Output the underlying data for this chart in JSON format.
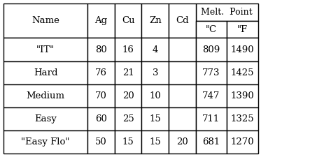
{
  "col_headers": [
    "Name",
    "Ag",
    "Cu",
    "Zn",
    "Cd",
    "\"C",
    "\"F"
  ],
  "melt_point_header": "Melt.  Point",
  "rows": [
    [
      "\"IT\"",
      "80",
      "16",
      "4",
      "",
      "809",
      "1490"
    ],
    [
      "Hard",
      "76",
      "21",
      "3",
      "",
      "773",
      "1425"
    ],
    [
      "Medium",
      "70",
      "20",
      "10",
      "",
      "747",
      "1390"
    ],
    [
      "Easy",
      "60",
      "25",
      "15",
      "",
      "711",
      "1325"
    ],
    [
      "\"Easy Flo\"",
      "50",
      "15",
      "15",
      "20",
      "681",
      "1270"
    ]
  ],
  "background_color": "#ffffff",
  "border_color": "#000000",
  "text_color": "#000000",
  "font_size": 9.5,
  "lw": 1.0
}
